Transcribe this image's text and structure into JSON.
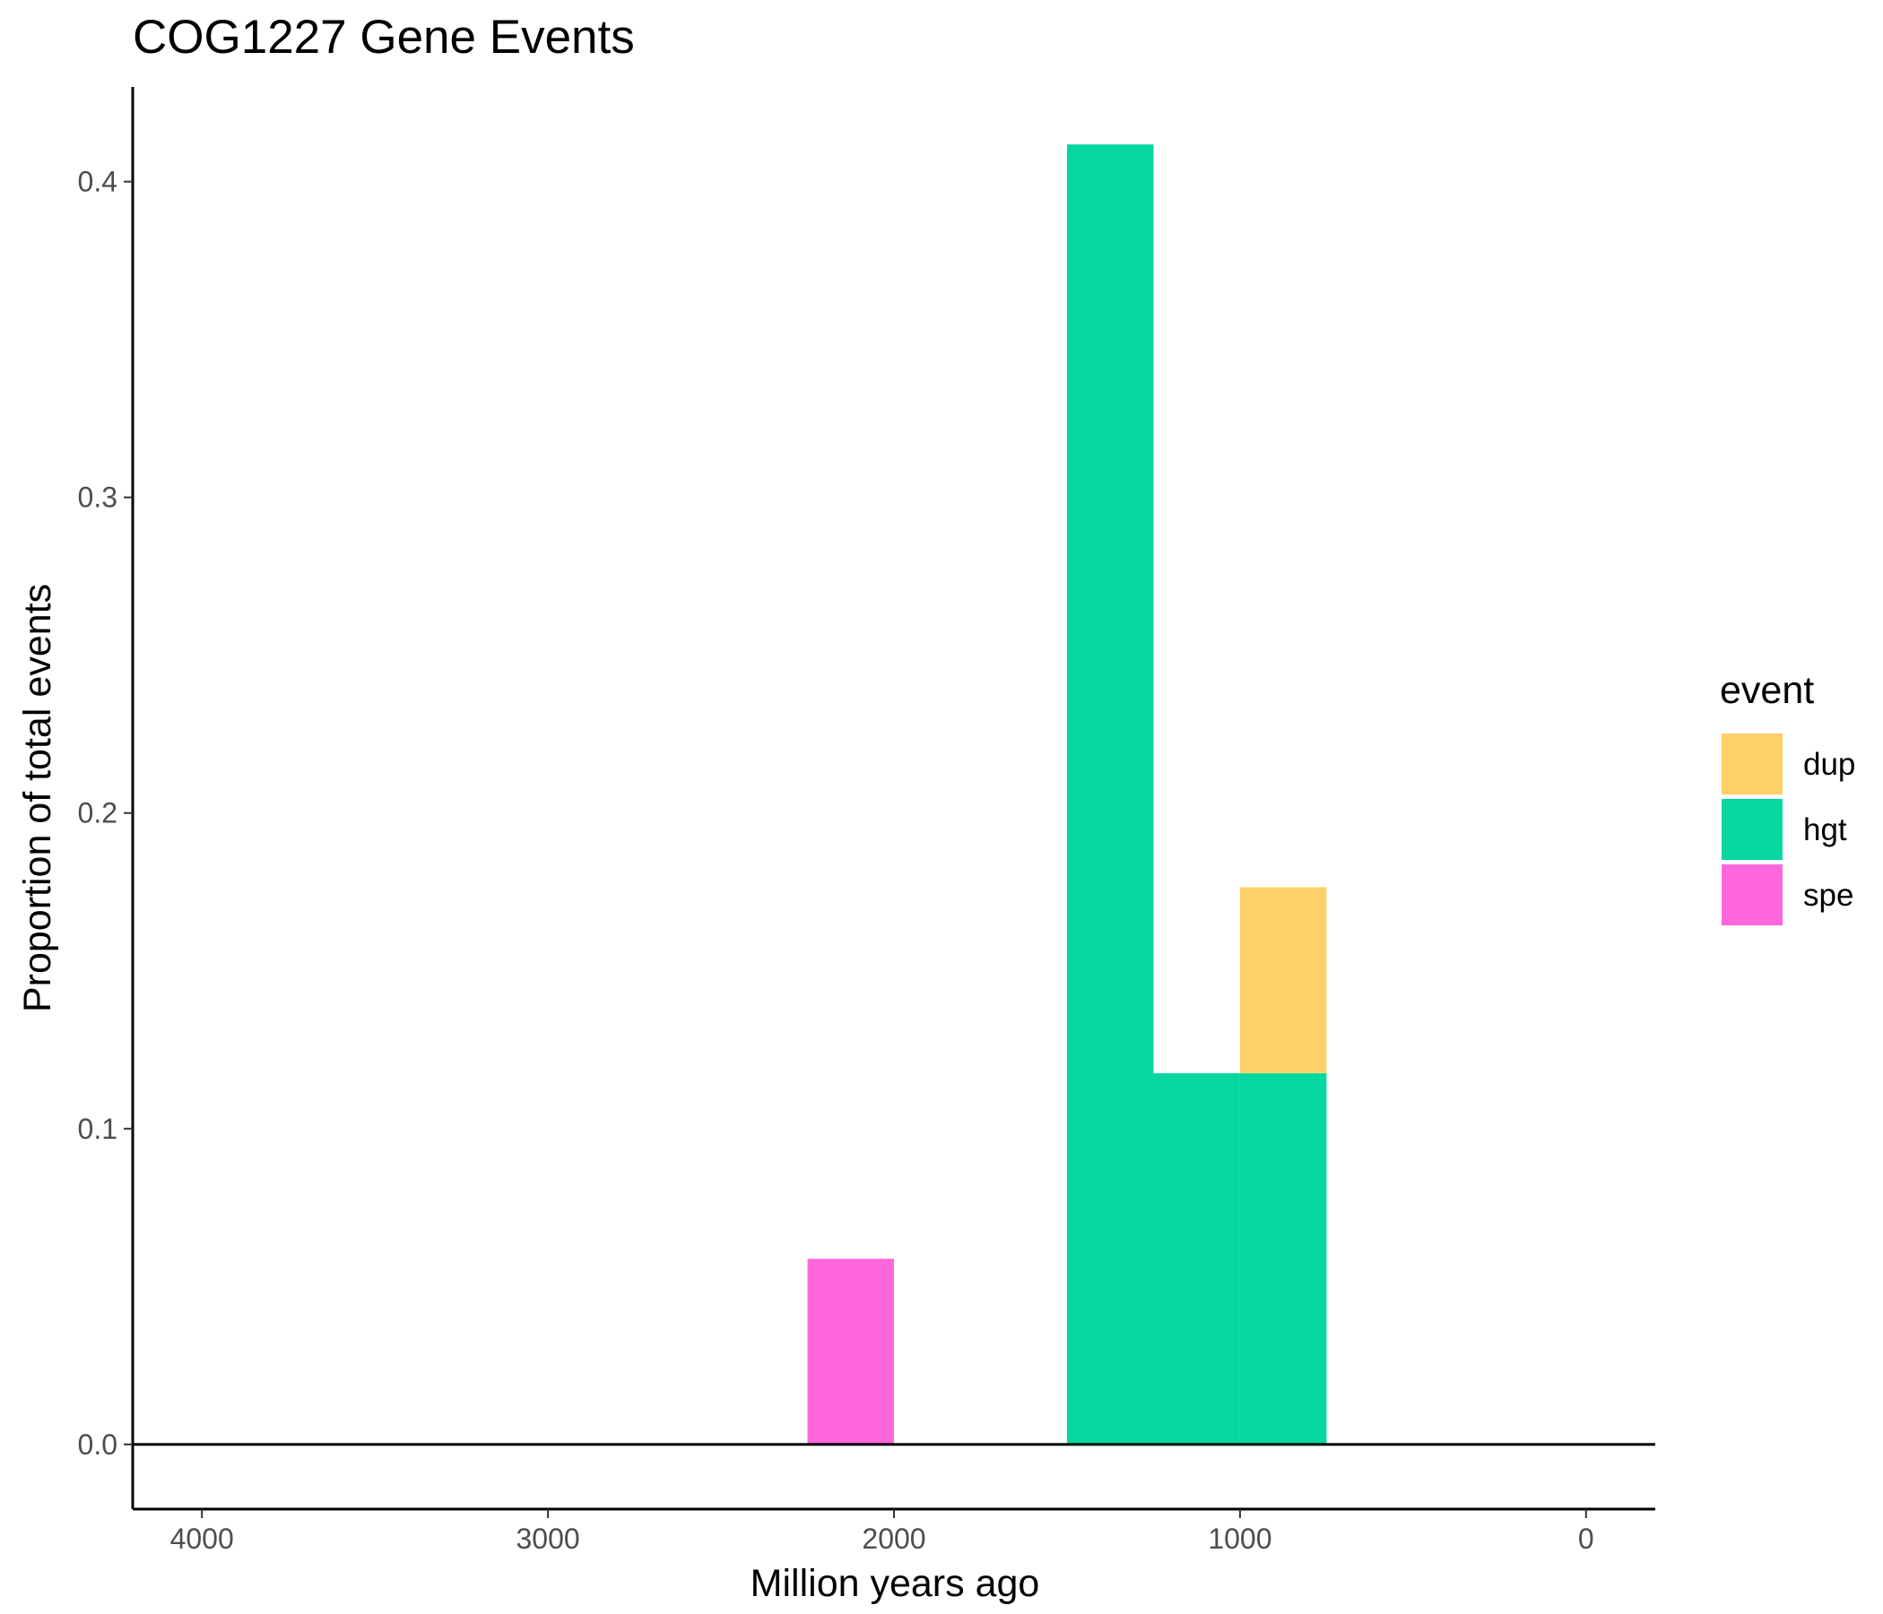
{
  "chart_data": {
    "type": "bar",
    "subtype": "stacked-histogram",
    "title": "COG1227 Gene Events",
    "xlabel": "Million years ago",
    "ylabel": "Proportion of total events",
    "x_reversed": true,
    "xlim": [
      4200,
      -200
    ],
    "ylim": [
      -0.0205,
      0.43
    ],
    "x_ticks": [
      4000,
      3000,
      2000,
      1000,
      0
    ],
    "x_tick_labels": [
      "4000",
      "3000",
      "2000",
      "1000",
      "0"
    ],
    "y_ticks": [
      0.0,
      0.1,
      0.2,
      0.3,
      0.4
    ],
    "y_tick_labels": [
      "0.0",
      "0.1",
      "0.2",
      "0.3",
      "0.4"
    ],
    "grid": false,
    "zero_line": true,
    "legend": {
      "title": "event",
      "position": "right",
      "entries": [
        {
          "name": "dup",
          "color": "#FDD167"
        },
        {
          "name": "hgt",
          "color": "#06D6A0"
        },
        {
          "name": "spe",
          "color": "#FF66DC"
        }
      ]
    },
    "bins": [
      {
        "x_from": 2250,
        "x_to": 2000,
        "event": "spe",
        "y_from": 0.0,
        "y_to": 0.0588
      },
      {
        "x_from": 1500,
        "x_to": 1250,
        "event": "hgt",
        "y_from": 0.0,
        "y_to": 0.4118
      },
      {
        "x_from": 1250,
        "x_to": 1000,
        "event": "hgt",
        "y_from": 0.0,
        "y_to": 0.1176
      },
      {
        "x_from": 1000,
        "x_to": 750,
        "event": "hgt",
        "y_from": 0.0,
        "y_to": 0.1176
      },
      {
        "x_from": 1000,
        "x_to": 750,
        "event": "dup",
        "y_from": 0.1176,
        "y_to": 0.1765
      }
    ]
  }
}
